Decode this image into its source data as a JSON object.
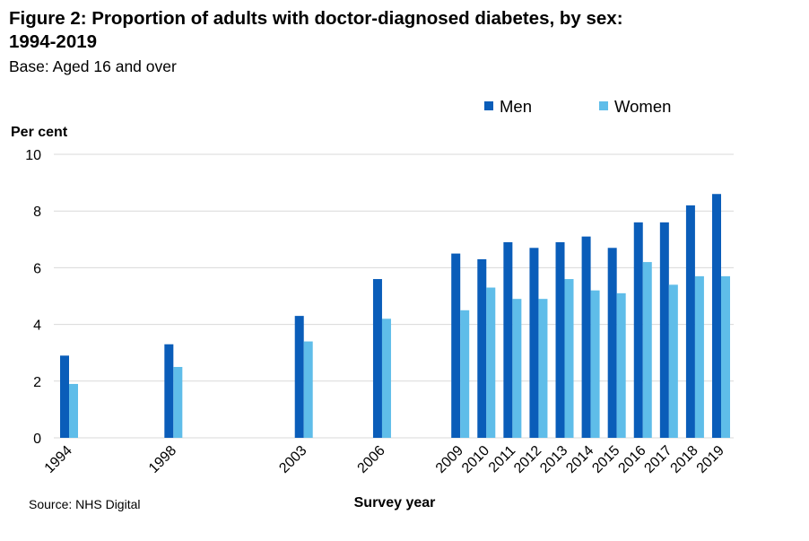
{
  "title": "Figure 2: Proportion of adults with doctor-diagnosed diabetes, by sex: 1994-2019",
  "subtitle": "Base: Aged 16 and over",
  "source": "Source: NHS Digital",
  "colors": {
    "men": "#0a5db9",
    "women": "#5fbde9"
  },
  "chart_data": {
    "type": "bar",
    "categories": [
      "1994",
      "1998",
      "2003",
      "2006",
      "2009",
      "2010",
      "2011",
      "2012",
      "2013",
      "2014",
      "2015",
      "2016",
      "2017",
      "2018",
      "2019"
    ],
    "series": [
      {
        "name": "Men",
        "values": [
          2.9,
          3.3,
          4.3,
          5.6,
          6.5,
          6.3,
          6.9,
          6.7,
          6.9,
          7.1,
          6.7,
          7.6,
          7.6,
          8.2,
          8.6
        ]
      },
      {
        "name": "Women",
        "values": [
          1.9,
          2.5,
          3.4,
          4.2,
          4.5,
          5.3,
          4.9,
          4.9,
          5.6,
          5.2,
          5.1,
          6.2,
          5.4,
          5.7,
          5.7
        ]
      }
    ],
    "title": "Figure 2: Proportion of adults with doctor-diagnosed diabetes, by sex: 1994-2019",
    "xlabel": "Survey year",
    "ylabel": "Per cent",
    "ylim": [
      0,
      10
    ],
    "yticks": [
      "0",
      "2",
      "4",
      "6",
      "8",
      "10"
    ],
    "grid": true,
    "legend_position": "top-right"
  }
}
